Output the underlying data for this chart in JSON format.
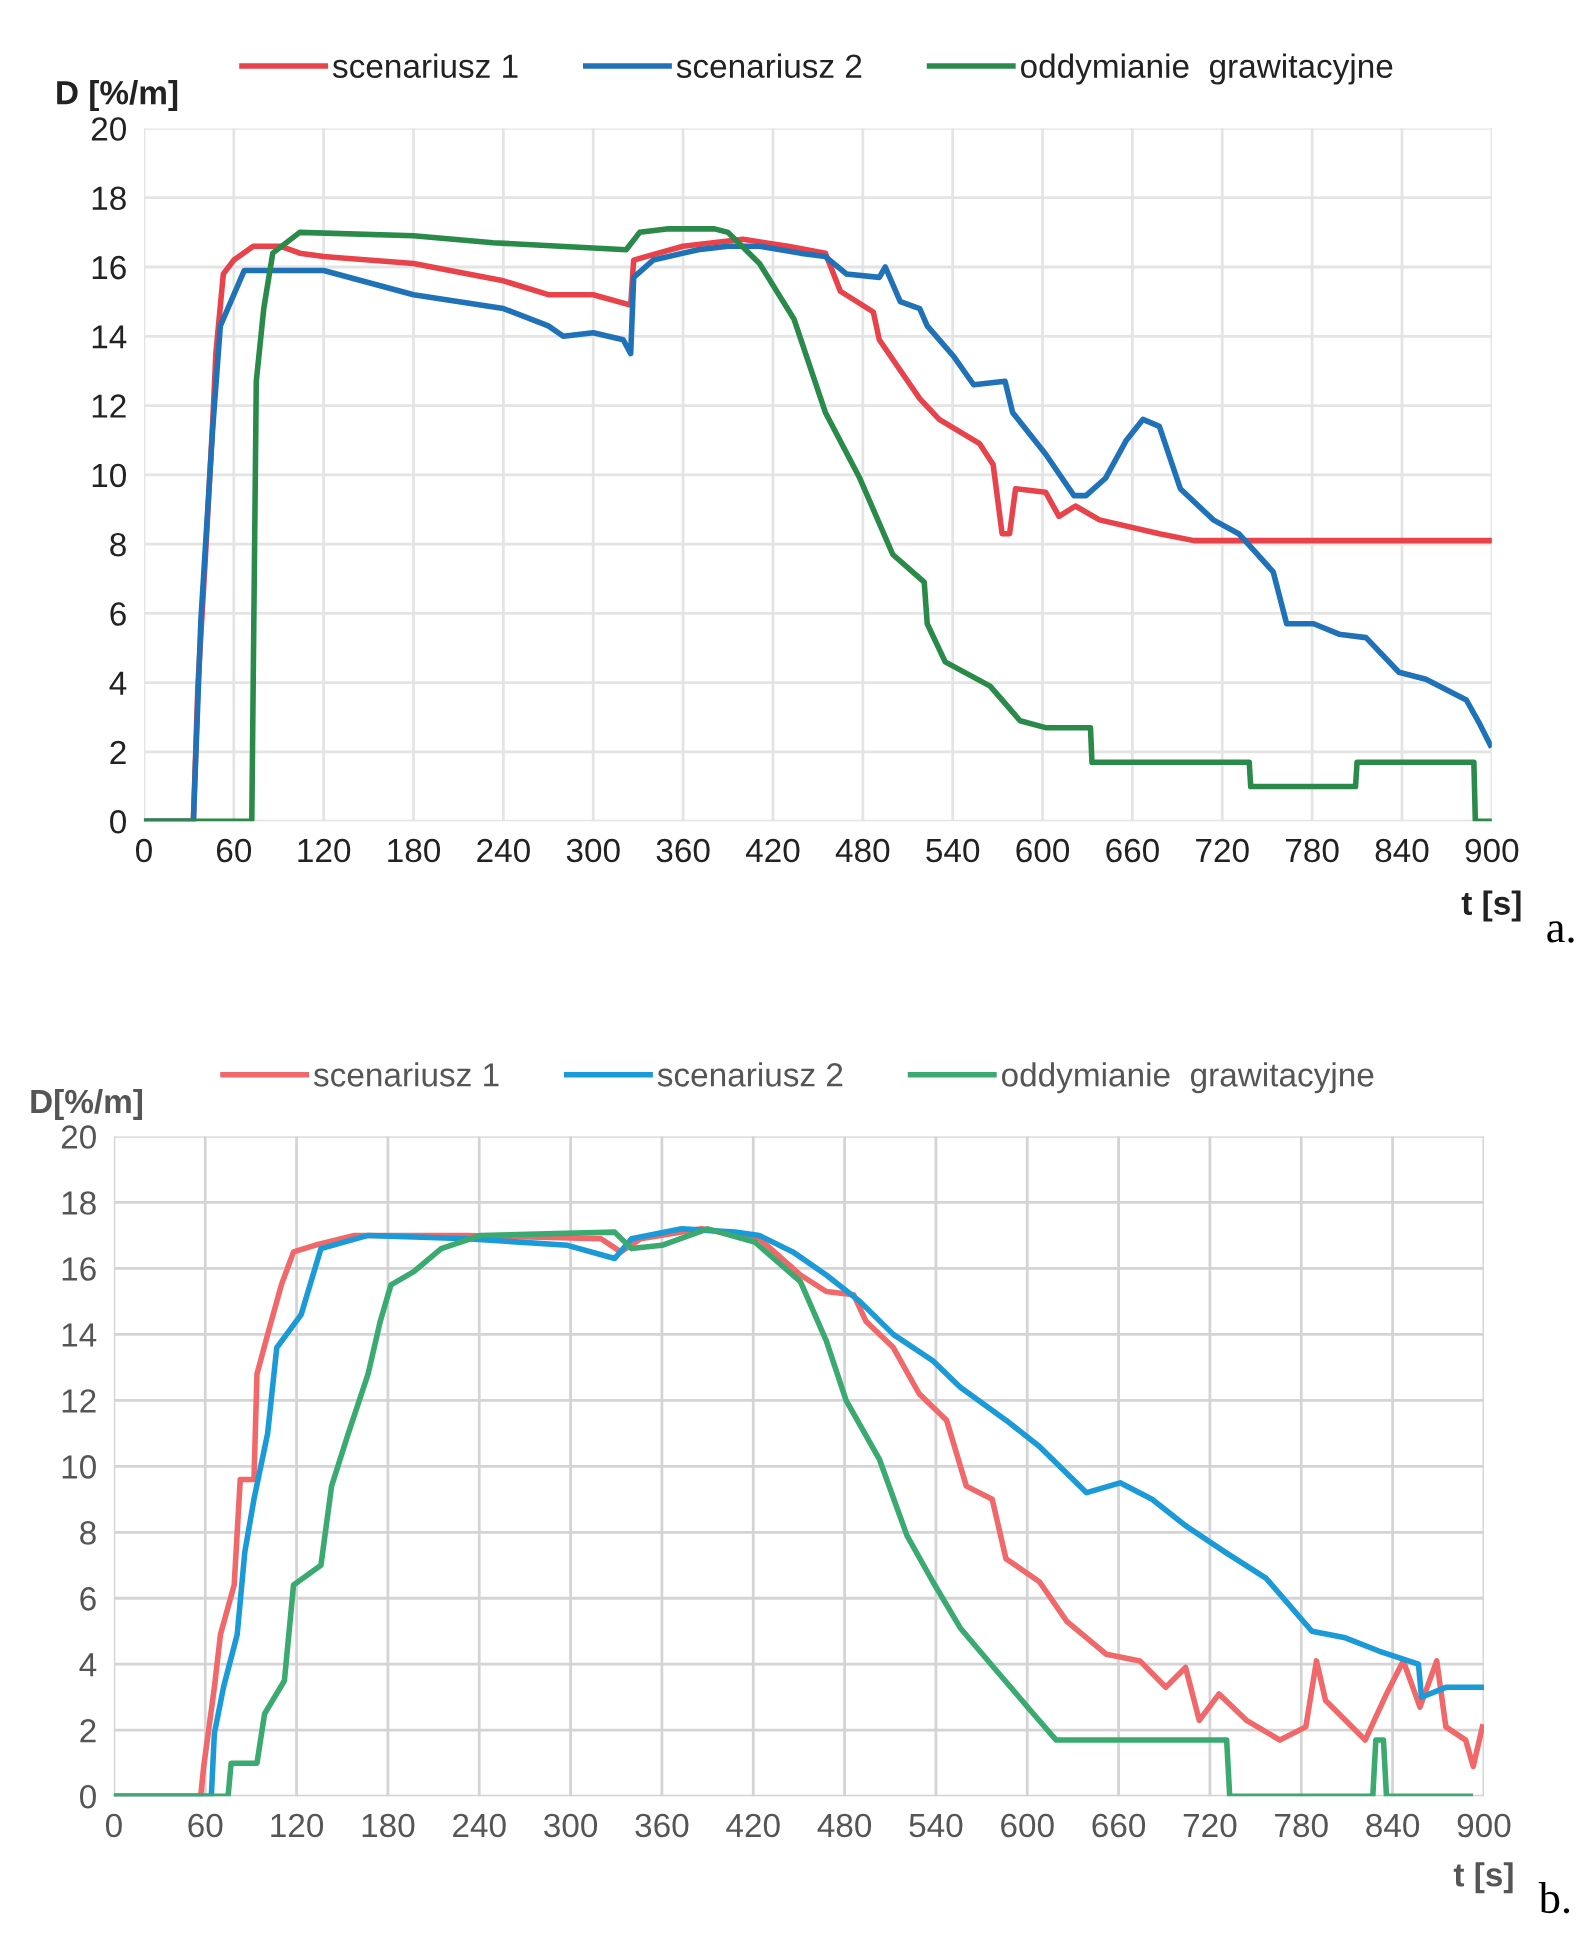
{
  "chart_data": [
    {
      "type": "line",
      "xlabel": "t [s]",
      "ylabel": "D [%/m]",
      "annotations": [
        "a."
      ],
      "xlim": [
        0,
        900
      ],
      "ylim": [
        0,
        20
      ],
      "xticks": [
        0,
        60,
        120,
        180,
        240,
        300,
        360,
        420,
        480,
        540,
        600,
        660,
        720,
        780,
        840,
        900
      ],
      "yticks": [
        0,
        2,
        4,
        6,
        8,
        10,
        12,
        14,
        16,
        18,
        20
      ],
      "grid": true,
      "legend": "top",
      "series": [
        {
          "name": "scenariusz 1",
          "color": "#e8434b",
          "x": [
            0,
            33,
            36,
            41,
            46,
            48,
            53,
            60,
            73,
            91,
            104,
            120,
            180,
            240,
            270,
            300,
            325,
            327,
            360,
            400,
            430,
            455,
            465,
            487,
            491,
            518,
            531,
            558,
            567,
            573,
            578,
            582,
            602,
            611,
            622,
            638,
            678,
            701,
            900
          ],
          "values": [
            0,
            0,
            3.9,
            7.6,
            11.6,
            13.5,
            15.8,
            16.2,
            16.6,
            16.6,
            16.4,
            16.3,
            16.1,
            15.6,
            15.2,
            15.2,
            14.9,
            16.2,
            16.6,
            16.8,
            16.6,
            16.4,
            15.3,
            14.7,
            13.9,
            12.2,
            11.6,
            10.9,
            10.3,
            8.3,
            8.3,
            9.6,
            9.5,
            8.8,
            9.1,
            8.7,
            8.3,
            8.1,
            8.1
          ]
        },
        {
          "name": "scenariusz 2",
          "color": "#1f72b8",
          "x": [
            0,
            33,
            38,
            46,
            51,
            58,
            67,
            82,
            100,
            120,
            180,
            240,
            270,
            280,
            300,
            320,
            325,
            327,
            340,
            370,
            390,
            411,
            438,
            455,
            469,
            491,
            495,
            505,
            518,
            523,
            541,
            554,
            575,
            580,
            602,
            621,
            629,
            642,
            656,
            667,
            678,
            692,
            714,
            731,
            754,
            763,
            781,
            798,
            816,
            838,
            856,
            883,
            892,
            899
          ],
          "values": [
            0,
            0,
            5.8,
            11.4,
            14.3,
            15.0,
            15.9,
            15.9,
            15.9,
            15.9,
            15.2,
            14.8,
            14.3,
            14.0,
            14.1,
            13.9,
            13.5,
            15.7,
            16.2,
            16.5,
            16.6,
            16.6,
            16.4,
            16.3,
            15.8,
            15.7,
            16.0,
            15.0,
            14.8,
            14.3,
            13.4,
            12.6,
            12.7,
            11.8,
            10.6,
            9.4,
            9.4,
            9.9,
            11.0,
            11.6,
            11.4,
            9.6,
            8.7,
            8.3,
            7.2,
            5.7,
            5.7,
            5.4,
            5.3,
            4.3,
            4.1,
            3.5,
            2.8,
            2.2
          ]
        },
        {
          "name": "oddymianie  grawitacyjne",
          "color": "#2a8a4a",
          "x": [
            0,
            72,
            75,
            80,
            86,
            104,
            180,
            233,
            322,
            331,
            349,
            381,
            390,
            411,
            434,
            455,
            478,
            500,
            521,
            523,
            535,
            565,
            585,
            602,
            632,
            633,
            738,
            739,
            809,
            810,
            888,
            889,
            900
          ],
          "values": [
            0,
            0,
            12.7,
            14.8,
            16.4,
            17.0,
            16.9,
            16.7,
            16.5,
            17.0,
            17.1,
            17.1,
            17.0,
            16.1,
            14.5,
            11.8,
            9.9,
            7.7,
            6.9,
            5.7,
            4.6,
            3.9,
            2.9,
            2.7,
            2.7,
            1.7,
            1.7,
            1.0,
            1.0,
            1.7,
            1.7,
            0,
            0
          ]
        }
      ]
    },
    {
      "type": "line",
      "xlabel": "t [s]",
      "ylabel": "D[%/m]",
      "annotations": [
        "b."
      ],
      "xlim": [
        0,
        900
      ],
      "ylim": [
        0,
        20
      ],
      "xticks": [
        0,
        60,
        120,
        180,
        240,
        300,
        360,
        420,
        480,
        540,
        600,
        660,
        720,
        780,
        840,
        900
      ],
      "yticks": [
        0,
        2,
        4,
        6,
        8,
        10,
        12,
        14,
        16,
        18,
        20
      ],
      "grid": true,
      "legend": "top",
      "series": [
        {
          "name": "scenariusz 1",
          "color": "#f0686a",
          "x": [
            0,
            57,
            59,
            66,
            70,
            79,
            83,
            92,
            94,
            101,
            110,
            118,
            132,
            158,
            232,
            320,
            333,
            346,
            386,
            424,
            451,
            468,
            486,
            494,
            512,
            529,
            547,
            560,
            577,
            586,
            608,
            626,
            652,
            674,
            691,
            704,
            713,
            726,
            744,
            766,
            783,
            790,
            796,
            809,
            822,
            836,
            847,
            858,
            869,
            875,
            888,
            893,
            899
          ],
          "values": [
            0,
            0,
            0.9,
            3.3,
            4.9,
            6.4,
            9.6,
            9.6,
            12.8,
            14.0,
            15.5,
            16.5,
            16.7,
            17.0,
            17.0,
            16.9,
            16.5,
            16.9,
            17.2,
            16.9,
            15.8,
            15.3,
            15.2,
            14.4,
            13.6,
            12.2,
            11.4,
            9.4,
            9.0,
            7.2,
            6.5,
            5.3,
            4.3,
            4.1,
            3.3,
            3.9,
            2.3,
            3.1,
            2.3,
            1.7,
            2.1,
            4.1,
            2.9,
            2.3,
            1.7,
            3.1,
            4.1,
            2.7,
            4.1,
            2.1,
            1.7,
            0.9,
            2.1
          ]
        },
        {
          "name": "scenariusz 2",
          "color": "#1a9ad6",
          "x": [
            0,
            64,
            66,
            72,
            81,
            86,
            92,
            101,
            107,
            123,
            136,
            167,
            232,
            298,
            329,
            340,
            373,
            408,
            424,
            446,
            468,
            490,
            512,
            538,
            556,
            586,
            608,
            639,
            661,
            682,
            704,
            730,
            757,
            787,
            809,
            831,
            857,
            859,
            875,
            899
          ],
          "values": [
            0,
            0,
            1.9,
            3.3,
            4.9,
            7.4,
            9.0,
            11.0,
            13.6,
            14.6,
            16.6,
            17.0,
            16.9,
            16.7,
            16.3,
            16.9,
            17.2,
            17.1,
            17.0,
            16.5,
            15.8,
            15.0,
            14.0,
            13.2,
            12.4,
            11.4,
            10.6,
            9.2,
            9.5,
            9.0,
            8.2,
            7.4,
            6.6,
            5.0,
            4.8,
            4.4,
            4.0,
            3.0,
            3.3,
            3.3
          ]
        },
        {
          "name": "oddymianie  grawitacyjne",
          "color": "#3aaa70",
          "x": [
            0,
            75,
            77,
            94,
            99,
            112,
            118,
            136,
            143,
            154,
            167,
            175,
            182,
            197,
            215,
            241,
            329,
            340,
            360,
            390,
            421,
            451,
            468,
            481,
            503,
            521,
            538,
            556,
            578,
            604,
            619,
            731,
            733,
            827,
            829,
            834,
            836,
            891
          ],
          "values": [
            0,
            0,
            1.0,
            1.0,
            2.5,
            3.5,
            6.4,
            7.0,
            9.4,
            11.0,
            12.8,
            14.4,
            15.5,
            15.9,
            16.6,
            17.0,
            17.1,
            16.6,
            16.7,
            17.2,
            16.8,
            15.6,
            13.8,
            12.0,
            10.2,
            7.9,
            6.5,
            5.1,
            3.9,
            2.5,
            1.7,
            1.7,
            0,
            0,
            1.7,
            1.7,
            0,
            0
          ]
        }
      ]
    }
  ]
}
